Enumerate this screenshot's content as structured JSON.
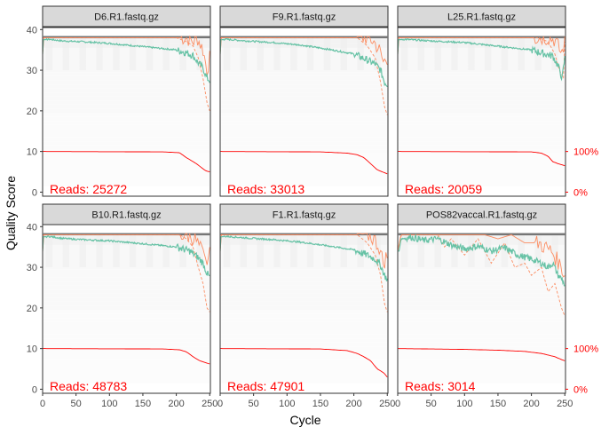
{
  "chart_data": {
    "type": "line",
    "xlabel": "Cycle",
    "ylabel": "Quality Score",
    "xlim": [
      0,
      251
    ],
    "ylim": [
      -1,
      40.5
    ],
    "x_ticks": [
      0,
      50,
      100,
      150,
      200,
      250
    ],
    "y_ticks": [
      0,
      10,
      20,
      30,
      40
    ],
    "right_axis_labels": [
      "100%",
      "0%"
    ],
    "right_axis_values": [
      10,
      0
    ],
    "reads_prefix": "Reads:",
    "colors": {
      "mean": "#66c2a5",
      "quantile": "#fc8d62",
      "median": "#fc8d62",
      "reads": "#ff0000",
      "heat": "#f0f0f0",
      "strip_fill": "#d9d9d9",
      "strip_border": "#333333"
    },
    "panels": [
      {
        "name": "D6.R1.fastq.gz",
        "reads": "25272",
        "mean_quality": [
          [
            0,
            34
          ],
          [
            1,
            37.5
          ],
          [
            10,
            37.6
          ],
          [
            30,
            37.2
          ],
          [
            60,
            37
          ],
          [
            100,
            36.6
          ],
          [
            150,
            35.8
          ],
          [
            200,
            35
          ],
          [
            215,
            34.3
          ],
          [
            225,
            33.6
          ],
          [
            232,
            32
          ],
          [
            240,
            30.5
          ],
          [
            246,
            28
          ],
          [
            250,
            27.5
          ]
        ],
        "q25": [
          [
            0,
            33.5
          ],
          [
            1,
            38
          ],
          [
            200,
            38
          ],
          [
            215,
            37
          ],
          [
            225,
            36
          ],
          [
            233,
            33
          ],
          [
            240,
            28
          ],
          [
            246,
            22
          ],
          [
            250,
            20
          ]
        ],
        "median": [
          [
            0,
            34
          ],
          [
            1,
            38
          ],
          [
            215,
            38
          ],
          [
            225,
            37
          ],
          [
            232,
            37.8
          ],
          [
            240,
            35
          ],
          [
            246,
            30
          ],
          [
            250,
            33
          ]
        ],
        "reads_pct": [
          [
            0,
            100
          ],
          [
            180,
            99
          ],
          [
            205,
            97
          ],
          [
            215,
            85
          ],
          [
            230,
            70
          ],
          [
            242,
            55
          ],
          [
            245,
            52
          ],
          [
            250,
            50
          ]
        ]
      },
      {
        "name": "F9.R1.fastq.gz",
        "reads": "33013",
        "mean_quality": [
          [
            0,
            34
          ],
          [
            1,
            37.5
          ],
          [
            10,
            37.6
          ],
          [
            40,
            37.2
          ],
          [
            80,
            36.8
          ],
          [
            120,
            36.2
          ],
          [
            160,
            35.2
          ],
          [
            200,
            34
          ],
          [
            220,
            32.5
          ],
          [
            232,
            31.5
          ],
          [
            240,
            30
          ],
          [
            246,
            27
          ],
          [
            250,
            26.5
          ]
        ],
        "q25": [
          [
            0,
            33.5
          ],
          [
            1,
            38
          ],
          [
            205,
            38
          ],
          [
            220,
            36
          ],
          [
            232,
            33
          ],
          [
            240,
            27
          ],
          [
            246,
            21
          ],
          [
            250,
            19
          ]
        ],
        "median": [
          [
            0,
            34
          ],
          [
            1,
            38
          ],
          [
            220,
            38
          ],
          [
            230,
            37
          ],
          [
            238,
            35
          ],
          [
            244,
            32
          ],
          [
            250,
            33
          ]
        ],
        "reads_pct": [
          [
            0,
            100
          ],
          [
            150,
            99
          ],
          [
            190,
            96
          ],
          [
            205,
            92
          ],
          [
            215,
            85
          ],
          [
            225,
            70
          ],
          [
            235,
            55
          ],
          [
            250,
            45
          ]
        ]
      },
      {
        "name": "L25.R1.fastq.gz",
        "reads": "20059",
        "mean_quality": [
          [
            0,
            34
          ],
          [
            1,
            37.5
          ],
          [
            10,
            37.6
          ],
          [
            50,
            37.2
          ],
          [
            100,
            36.8
          ],
          [
            150,
            35.9
          ],
          [
            200,
            35
          ],
          [
            220,
            34
          ],
          [
            232,
            33.5
          ],
          [
            240,
            31
          ],
          [
            246,
            28
          ],
          [
            250,
            33
          ]
        ],
        "q25": [
          [
            0,
            33.5
          ],
          [
            1,
            38
          ],
          [
            210,
            38
          ],
          [
            225,
            37
          ],
          [
            235,
            34
          ],
          [
            242,
            30
          ],
          [
            248,
            28
          ],
          [
            250,
            37
          ]
        ],
        "median": [
          [
            0,
            34
          ],
          [
            1,
            38
          ],
          [
            225,
            38
          ],
          [
            235,
            37.5
          ],
          [
            245,
            34
          ],
          [
            250,
            37
          ]
        ],
        "reads_pct": [
          [
            0,
            100
          ],
          [
            200,
            99
          ],
          [
            215,
            96
          ],
          [
            225,
            88
          ],
          [
            232,
            75
          ],
          [
            240,
            70
          ],
          [
            250,
            65
          ]
        ]
      },
      {
        "name": "B10.R1.fastq.gz",
        "reads": "48783",
        "mean_quality": [
          [
            0,
            34
          ],
          [
            1,
            37.5
          ],
          [
            10,
            37.6
          ],
          [
            30,
            37.1
          ],
          [
            60,
            36.8
          ],
          [
            100,
            36.5
          ],
          [
            150,
            35.8
          ],
          [
            200,
            35
          ],
          [
            220,
            34
          ],
          [
            232,
            32.5
          ],
          [
            240,
            31
          ],
          [
            246,
            28.5
          ],
          [
            250,
            27.5
          ]
        ],
        "q25": [
          [
            0,
            33.5
          ],
          [
            1,
            38
          ],
          [
            205,
            38
          ],
          [
            215,
            37
          ],
          [
            225,
            35
          ],
          [
            233,
            30
          ],
          [
            240,
            26
          ],
          [
            246,
            20
          ],
          [
            250,
            19
          ]
        ],
        "median": [
          [
            0,
            34
          ],
          [
            1,
            38
          ],
          [
            215,
            38
          ],
          [
            228,
            37
          ],
          [
            238,
            34
          ],
          [
            244,
            31
          ],
          [
            250,
            33
          ]
        ],
        "reads_pct": [
          [
            0,
            100
          ],
          [
            180,
            99
          ],
          [
            205,
            97
          ],
          [
            215,
            92
          ],
          [
            225,
            80
          ],
          [
            235,
            70
          ],
          [
            250,
            62
          ]
        ]
      },
      {
        "name": "F1.R1.fastq.gz",
        "reads": "47901",
        "mean_quality": [
          [
            0,
            34
          ],
          [
            1,
            37.5
          ],
          [
            10,
            37.6
          ],
          [
            40,
            37.2
          ],
          [
            80,
            36.8
          ],
          [
            120,
            36.2
          ],
          [
            160,
            35.3
          ],
          [
            200,
            34.3
          ],
          [
            220,
            33
          ],
          [
            232,
            32
          ],
          [
            240,
            30.5
          ],
          [
            246,
            28
          ],
          [
            250,
            27
          ]
        ],
        "q25": [
          [
            0,
            33.5
          ],
          [
            1,
            38
          ],
          [
            205,
            38
          ],
          [
            220,
            36
          ],
          [
            232,
            33
          ],
          [
            240,
            28
          ],
          [
            246,
            21
          ],
          [
            250,
            19
          ]
        ],
        "median": [
          [
            0,
            34
          ],
          [
            1,
            38
          ],
          [
            220,
            38
          ],
          [
            230,
            37
          ],
          [
            238,
            35
          ],
          [
            244,
            31
          ],
          [
            250,
            33
          ]
        ],
        "reads_pct": [
          [
            0,
            100
          ],
          [
            150,
            99
          ],
          [
            190,
            95
          ],
          [
            205,
            88
          ],
          [
            215,
            80
          ],
          [
            225,
            70
          ],
          [
            235,
            50
          ],
          [
            245,
            40
          ],
          [
            250,
            30
          ]
        ]
      },
      {
        "name": "POS82vaccal.R1.fastq.gz",
        "reads": "3014",
        "mean_quality": [
          [
            0,
            34
          ],
          [
            2,
            34
          ],
          [
            5,
            37
          ],
          [
            20,
            37.4
          ],
          [
            40,
            36.6
          ],
          [
            60,
            37
          ],
          [
            80,
            35.5
          ],
          [
            100,
            34.5
          ],
          [
            120,
            35.2
          ],
          [
            140,
            34
          ],
          [
            160,
            34.8
          ],
          [
            180,
            33
          ],
          [
            200,
            32
          ],
          [
            215,
            31
          ],
          [
            225,
            30
          ],
          [
            232,
            31
          ],
          [
            240,
            28
          ],
          [
            246,
            27
          ],
          [
            250,
            25.5
          ]
        ],
        "q25": [
          [
            0,
            34
          ],
          [
            5,
            38
          ],
          [
            60,
            38
          ],
          [
            70,
            35
          ],
          [
            80,
            37
          ],
          [
            100,
            33
          ],
          [
            120,
            37
          ],
          [
            140,
            31
          ],
          [
            160,
            36
          ],
          [
            175,
            30
          ],
          [
            190,
            31
          ],
          [
            200,
            28
          ],
          [
            215,
            30
          ],
          [
            225,
            24
          ],
          [
            235,
            26
          ],
          [
            245,
            20
          ],
          [
            250,
            18
          ]
        ],
        "median": [
          [
            0,
            34
          ],
          [
            5,
            38
          ],
          [
            100,
            38
          ],
          [
            130,
            38
          ],
          [
            150,
            37
          ],
          [
            170,
            38
          ],
          [
            190,
            36
          ],
          [
            210,
            36
          ],
          [
            230,
            34
          ],
          [
            245,
            30
          ],
          [
            250,
            28
          ]
        ],
        "reads_pct": [
          [
            0,
            100
          ],
          [
            100,
            98
          ],
          [
            150,
            96
          ],
          [
            190,
            93
          ],
          [
            215,
            88
          ],
          [
            235,
            80
          ],
          [
            245,
            73
          ],
          [
            250,
            70
          ]
        ]
      }
    ]
  }
}
